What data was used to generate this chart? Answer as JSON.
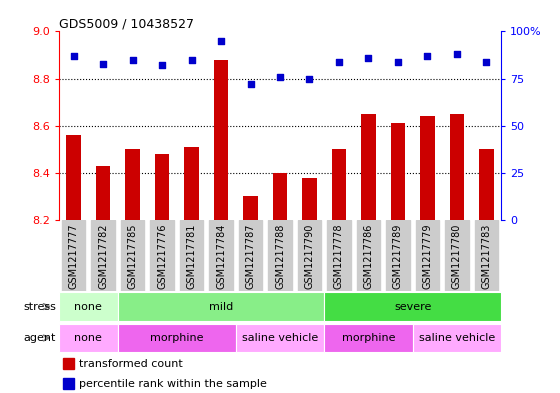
{
  "title": "GDS5009 / 10438527",
  "samples": [
    "GSM1217777",
    "GSM1217782",
    "GSM1217785",
    "GSM1217776",
    "GSM1217781",
    "GSM1217784",
    "GSM1217787",
    "GSM1217788",
    "GSM1217790",
    "GSM1217778",
    "GSM1217786",
    "GSM1217789",
    "GSM1217779",
    "GSM1217780",
    "GSM1217783"
  ],
  "bar_values": [
    8.56,
    8.43,
    8.5,
    8.48,
    8.51,
    8.88,
    8.3,
    8.4,
    8.38,
    8.5,
    8.65,
    8.61,
    8.64,
    8.65,
    8.5
  ],
  "dot_values": [
    87,
    83,
    85,
    82,
    85,
    95,
    72,
    76,
    75,
    84,
    86,
    84,
    87,
    88,
    84
  ],
  "bar_color": "#cc0000",
  "dot_color": "#0000cc",
  "ylim_left": [
    8.2,
    9.0
  ],
  "ylim_right": [
    0,
    100
  ],
  "yticks_left": [
    8.2,
    8.4,
    8.6,
    8.8,
    9.0
  ],
  "yticks_right": [
    0,
    25,
    50,
    75,
    100
  ],
  "grid_values": [
    8.4,
    8.6,
    8.8
  ],
  "stress_groups": [
    {
      "label": "none",
      "start": 0,
      "end": 2,
      "color": "#ccffcc"
    },
    {
      "label": "mild",
      "start": 2,
      "end": 9,
      "color": "#88ee88"
    },
    {
      "label": "severe",
      "start": 9,
      "end": 15,
      "color": "#44dd44"
    }
  ],
  "agent_groups": [
    {
      "label": "none",
      "start": 0,
      "end": 2,
      "color": "#ffaaff"
    },
    {
      "label": "morphine",
      "start": 2,
      "end": 6,
      "color": "#ee66ee"
    },
    {
      "label": "saline vehicle",
      "start": 6,
      "end": 9,
      "color": "#ffaaff"
    },
    {
      "label": "morphine",
      "start": 9,
      "end": 12,
      "color": "#ee66ee"
    },
    {
      "label": "saline vehicle",
      "start": 12,
      "end": 15,
      "color": "#ffaaff"
    }
  ],
  "background_color": "#ffffff",
  "ticklabel_bg": "#cccccc",
  "ticklabel_fontsize": 7,
  "bar_width": 0.5
}
